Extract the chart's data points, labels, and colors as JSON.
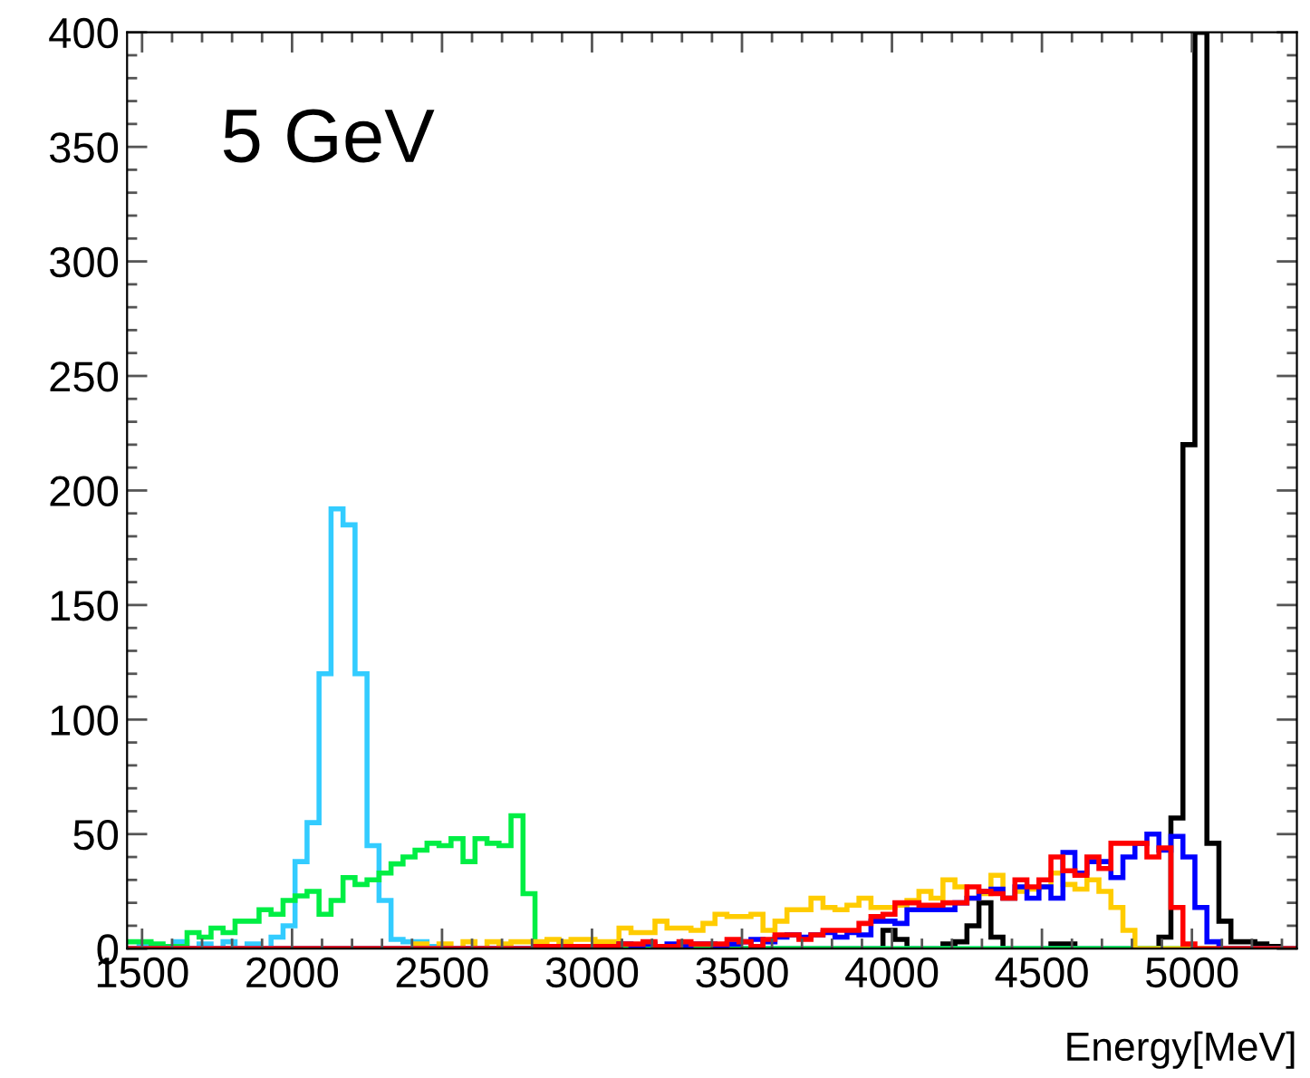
{
  "chart_data": {
    "type": "histogram",
    "title": "5 GeV",
    "xlabel": "Energy[MeV]",
    "bins": [
      1450,
      1490,
      1530,
      1570,
      1610,
      1650,
      1690,
      1730,
      1770,
      1810,
      1850,
      1890,
      1930,
      1970,
      2010,
      2050,
      2090,
      2130,
      2170,
      2210,
      2250,
      2290,
      2330,
      2370,
      2410,
      2450,
      2490,
      2530,
      2570,
      2610,
      2650,
      2690,
      2730,
      2770,
      2810,
      2850,
      2890,
      2930,
      2970,
      3010,
      3050,
      3090,
      3130,
      3170,
      3210,
      3250,
      3290,
      3330,
      3370,
      3410,
      3450,
      3490,
      3530,
      3570,
      3610,
      3650,
      3690,
      3730,
      3770,
      3810,
      3850,
      3890,
      3930,
      3970,
      4010,
      4050,
      4090,
      4130,
      4170,
      4210,
      4250,
      4290,
      4330,
      4370,
      4410,
      4450,
      4490,
      4530,
      4570,
      4610,
      4650,
      4690,
      4730,
      4770,
      4810,
      4850,
      4890,
      4930,
      4970,
      5010,
      5050,
      5090,
      5130,
      5170,
      5210,
      5250,
      5290,
      5330,
      5350
    ],
    "series": [
      {
        "color": "#000000",
        "values": [
          0,
          0,
          0,
          0,
          0,
          0,
          0,
          0,
          0,
          0,
          0,
          0,
          0,
          0,
          0,
          0,
          0,
          0,
          0,
          0,
          0,
          0,
          0,
          0,
          0,
          0,
          0,
          0,
          0,
          0,
          0,
          0,
          0,
          0,
          0,
          0,
          0,
          0,
          0,
          0,
          0,
          0,
          0,
          0,
          0,
          0,
          0,
          0,
          0,
          0,
          0,
          0,
          0,
          0,
          0,
          0,
          0,
          0,
          0,
          0,
          0,
          0,
          0,
          8,
          4,
          0,
          0,
          0,
          2,
          3,
          10,
          20,
          5,
          0,
          0,
          0,
          0,
          2,
          2,
          0,
          0,
          0,
          0,
          0,
          0,
          0,
          5,
          57,
          220,
          400,
          46,
          12,
          3,
          3,
          2,
          1,
          0,
          0
        ]
      },
      {
        "color": "#33ccff",
        "values": [
          0,
          2,
          0,
          0,
          3,
          0,
          2,
          0,
          3,
          0,
          2,
          0,
          5,
          10,
          38,
          55,
          120,
          192,
          185,
          120,
          45,
          21,
          4,
          3,
          3,
          1,
          0,
          0,
          0,
          0,
          0,
          0,
          0,
          0,
          0,
          0,
          0,
          0,
          0,
          0,
          0,
          0,
          0,
          0,
          0,
          0,
          0,
          0,
          0,
          0,
          0,
          0,
          0,
          0,
          0,
          0,
          0,
          0,
          0,
          0,
          0,
          0,
          0,
          0,
          0,
          0,
          0,
          0,
          0,
          0,
          0,
          0,
          0,
          0,
          0,
          0,
          0,
          0,
          0,
          0,
          0,
          0,
          0,
          0,
          0,
          0,
          0,
          0,
          0,
          0,
          0,
          0,
          0,
          0,
          0,
          0,
          0,
          0
        ]
      },
      {
        "color": "#00ee44",
        "values": [
          3,
          3,
          2,
          1,
          1,
          7,
          5,
          9,
          7,
          12,
          12,
          17,
          15,
          21,
          23,
          25,
          15,
          21,
          31,
          28,
          30,
          33,
          37,
          40,
          43,
          46,
          45,
          48,
          38,
          48,
          46,
          45,
          58,
          24,
          0,
          0,
          0,
          0,
          0,
          0,
          0,
          0,
          0,
          0,
          0,
          0,
          0,
          0,
          0,
          0,
          0,
          0,
          0,
          0,
          0,
          0,
          0,
          0,
          0,
          0,
          0,
          0,
          0,
          0,
          0,
          0,
          0,
          0,
          0,
          0,
          0,
          0,
          0,
          0,
          0,
          0,
          0,
          0,
          0,
          0,
          0,
          0,
          0,
          0,
          0,
          0,
          0,
          0,
          0,
          0,
          0,
          0,
          0,
          0,
          0,
          0,
          0,
          0
        ]
      },
      {
        "color": "#ffcc00",
        "values": [
          0,
          0,
          0,
          0,
          0,
          0,
          0,
          0,
          0,
          0,
          0,
          0,
          0,
          0,
          0,
          0,
          0,
          0,
          0,
          0,
          0,
          0,
          0,
          0,
          2,
          0,
          2,
          0,
          3,
          0,
          3,
          2,
          3,
          3,
          3,
          4,
          3,
          4,
          4,
          3,
          3,
          9,
          7,
          7,
          12,
          9,
          9,
          8,
          11,
          15,
          14,
          14,
          15,
          8,
          12,
          17,
          17,
          22,
          18,
          17,
          19,
          22,
          18,
          18,
          19,
          21,
          25,
          22,
          30,
          27,
          22,
          24,
          32,
          22,
          25,
          26,
          27,
          33,
          28,
          26,
          30,
          25,
          18,
          8,
          0,
          0,
          0,
          0,
          0,
          0,
          0,
          0,
          0,
          0,
          0,
          0,
          0,
          0
        ]
      },
      {
        "color": "#0000ff",
        "values": [
          0,
          0,
          0,
          0,
          0,
          0,
          0,
          0,
          0,
          0,
          0,
          0,
          0,
          0,
          0,
          0,
          0,
          0,
          0,
          0,
          0,
          0,
          0,
          0,
          0,
          0,
          0,
          0,
          0,
          0,
          0,
          0,
          0,
          0,
          0,
          0,
          0,
          0,
          0,
          0,
          1,
          2,
          1,
          2,
          1,
          2,
          1,
          2,
          2,
          1,
          2,
          3,
          4,
          3,
          5,
          6,
          5,
          6,
          7,
          5,
          7,
          6,
          12,
          12,
          11,
          17,
          17,
          17,
          17,
          20,
          22,
          25,
          26,
          22,
          27,
          22,
          27,
          22,
          42,
          33,
          38,
          38,
          31,
          40,
          46,
          50,
          43,
          49,
          40,
          18,
          3,
          0,
          0,
          0,
          0,
          0,
          0,
          0
        ]
      },
      {
        "color": "#ff0000",
        "values": [
          0,
          0,
          0,
          0,
          0,
          0,
          0,
          0,
          0,
          0,
          0,
          0,
          0,
          0,
          0,
          0,
          0,
          0,
          0,
          0,
          0,
          0,
          0,
          0,
          0,
          0,
          0,
          0,
          0,
          0,
          0,
          0,
          0,
          0,
          1,
          1,
          1,
          1,
          1,
          1,
          1,
          2,
          2,
          3,
          1,
          1,
          3,
          2,
          2,
          2,
          4,
          3,
          1,
          4,
          6,
          6,
          4,
          6,
          8,
          8,
          8,
          11,
          14,
          15,
          20,
          20,
          19,
          19,
          20,
          20,
          27,
          25,
          24,
          22,
          30,
          27,
          30,
          40,
          34,
          32,
          40,
          35,
          46,
          46,
          46,
          40,
          44,
          18,
          2,
          0,
          0,
          0,
          0,
          0,
          0,
          0,
          0,
          0
        ]
      }
    ],
    "xlim": [
      1450,
      5350
    ],
    "ylim": [
      0,
      400
    ],
    "xticks": [
      1500,
      2000,
      2500,
      3000,
      3500,
      4000,
      4500,
      5000
    ],
    "yticks": [
      0,
      50,
      100,
      150,
      200,
      250,
      300,
      350,
      400
    ],
    "grid": false
  }
}
